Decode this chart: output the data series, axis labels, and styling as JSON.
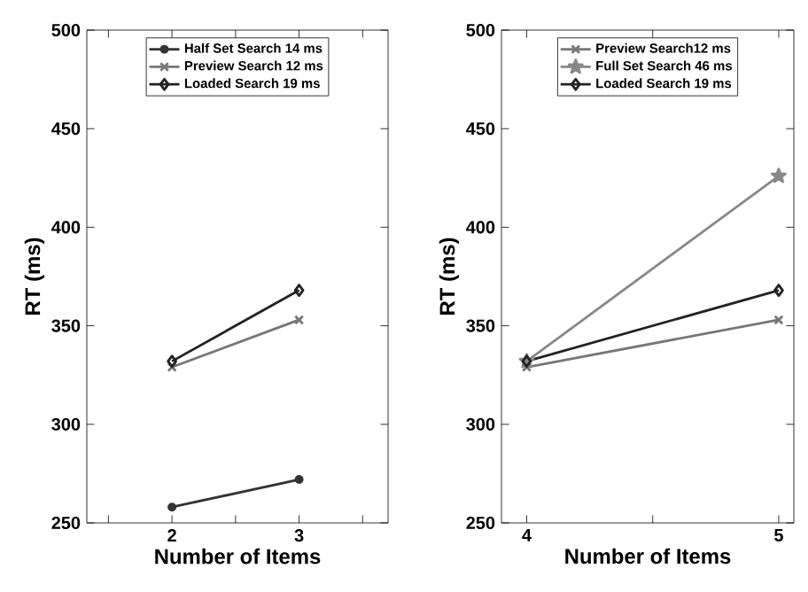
{
  "chart_data": [
    {
      "type": "line",
      "xlabel": "Number of Items",
      "ylabel": "RT (ms)",
      "x": [
        2,
        3
      ],
      "xlim": [
        1.33,
        3.7
      ],
      "xticks": [
        {
          "value": 1.5,
          "label": null
        },
        2,
        {
          "value": 2.5,
          "label": null
        },
        3,
        {
          "value": 3.5,
          "label": null
        }
      ],
      "ylim": [
        250,
        500
      ],
      "yticks": [
        250,
        300,
        350,
        400,
        450,
        500
      ],
      "legend": "top",
      "line_style": "solid",
      "series": [
        {
          "name": "Half Set Search  14 ms",
          "color": "#333333",
          "marker": "circle",
          "values": [
            258,
            272
          ]
        },
        {
          "name": "Preview Search 12 ms",
          "color": "#777777",
          "marker": "cross",
          "values": [
            329,
            353
          ]
        },
        {
          "name": "Loaded Search 19 ms",
          "color": "#222222",
          "marker": "diamond",
          "values": [
            332,
            368
          ]
        }
      ]
    },
    {
      "type": "line",
      "xlabel": "Number of Items",
      "ylabel": "RT (ms)",
      "x": [
        4,
        5
      ],
      "xlim": [
        3.9,
        5.06
      ],
      "xticks": [
        4,
        {
          "value": 4.5,
          "label": null
        },
        5
      ],
      "ylim": [
        250,
        500
      ],
      "yticks": [
        250,
        300,
        350,
        400,
        450,
        500
      ],
      "legend": "top",
      "line_style": "solid",
      "series": [
        {
          "name": "Preview Search12 ms",
          "color": "#777777",
          "marker": "cross",
          "values": [
            329,
            353
          ]
        },
        {
          "name": "Full Set Search 46 ms",
          "color": "#888888",
          "marker": "star",
          "values": [
            332,
            426
          ]
        },
        {
          "name": "Loaded Search 19 ms",
          "color": "#222222",
          "marker": "diamond",
          "values": [
            332,
            368
          ]
        }
      ]
    }
  ]
}
